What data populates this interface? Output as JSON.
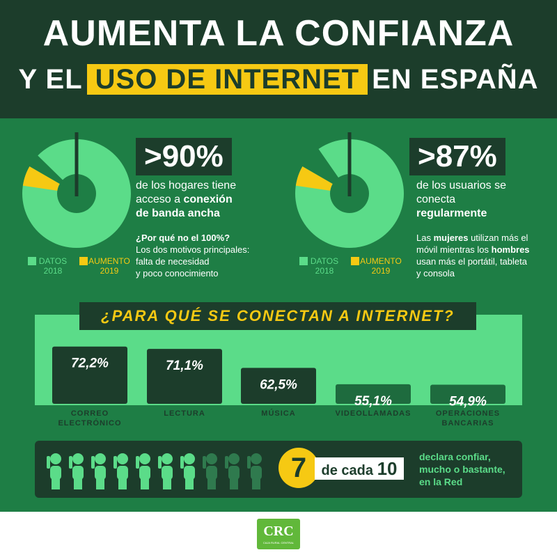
{
  "header": {
    "title_line1": "AUMENTA LA CONFIANZA",
    "title_line2_pre": "Y EL",
    "title_line2_highlight": "USO DE INTERNET",
    "title_line2_post": "EN ESPAÑA"
  },
  "stat1": {
    "value": ">90%",
    "text_a": "de los hogares tiene",
    "text_b_pre": "acceso a ",
    "text_b_bold": "conexión",
    "text_c_bold": "de banda ancha",
    "question": "¿Por qué no el 100%?",
    "answer_1": "Los dos motivos principales:",
    "answer_2": "falta de necesidad",
    "answer_3": "y poco conocimiento"
  },
  "stat2": {
    "value": ">87%",
    "text_a": "de los usuarios se",
    "text_b": "conecta",
    "text_c_bold": "regularmente",
    "note_1_pre": "Las ",
    "note_1_bold": "mujeres",
    "note_1_post": " utilizan más el",
    "note_2_pre": "móvil mientras los ",
    "note_2_bold": "hombres",
    "note_3": "usan más el portátil, tableta",
    "note_4": "y consola"
  },
  "legend": {
    "datos_line1": "DATOS",
    "datos_line2": "2018",
    "aumento_line1": "AUMENTO",
    "aumento_line2": "2019"
  },
  "section_title": "¿PARA QUÉ SE CONECTAN A INTERNET?",
  "people": {
    "number": "7",
    "of_text": "de cada",
    "total": "10",
    "desc_1": "declara confiar,",
    "desc_2": "mucho o bastante,",
    "desc_3": "en la Red"
  },
  "colors": {
    "dark": "#1c3d2b",
    "green": "#1e7e45",
    "light_green": "#5bdc89",
    "yellow": "#f6c913"
  },
  "logo": {
    "text": "CRC",
    "sub": "CAJA RURAL CENTRAL"
  },
  "chart_data": [
    {
      "type": "pie",
      "slices": [
        {
          "name": "DATOS 2018",
          "value": 90
        },
        {
          "name": "AUMENTO 2019",
          "value": 6
        }
      ]
    },
    {
      "type": "pie",
      "slices": [
        {
          "name": "DATOS 2018",
          "value": 87
        },
        {
          "name": "AUMENTO 2019",
          "value": 6
        }
      ]
    },
    {
      "type": "bar",
      "categories": [
        "CORREO ELECTRÓNICO",
        "LECTURA",
        "MÚSICA",
        "VIDEOLLAMADAS",
        "OPERACIONES BANCARIAS"
      ],
      "values": [
        72.2,
        71.1,
        62.5,
        55.1,
        54.9
      ],
      "value_labels": [
        "72,2%",
        "71,1%",
        "62,5%",
        "55,1%",
        "54,9%"
      ],
      "ylim": [
        0,
        80
      ]
    }
  ]
}
